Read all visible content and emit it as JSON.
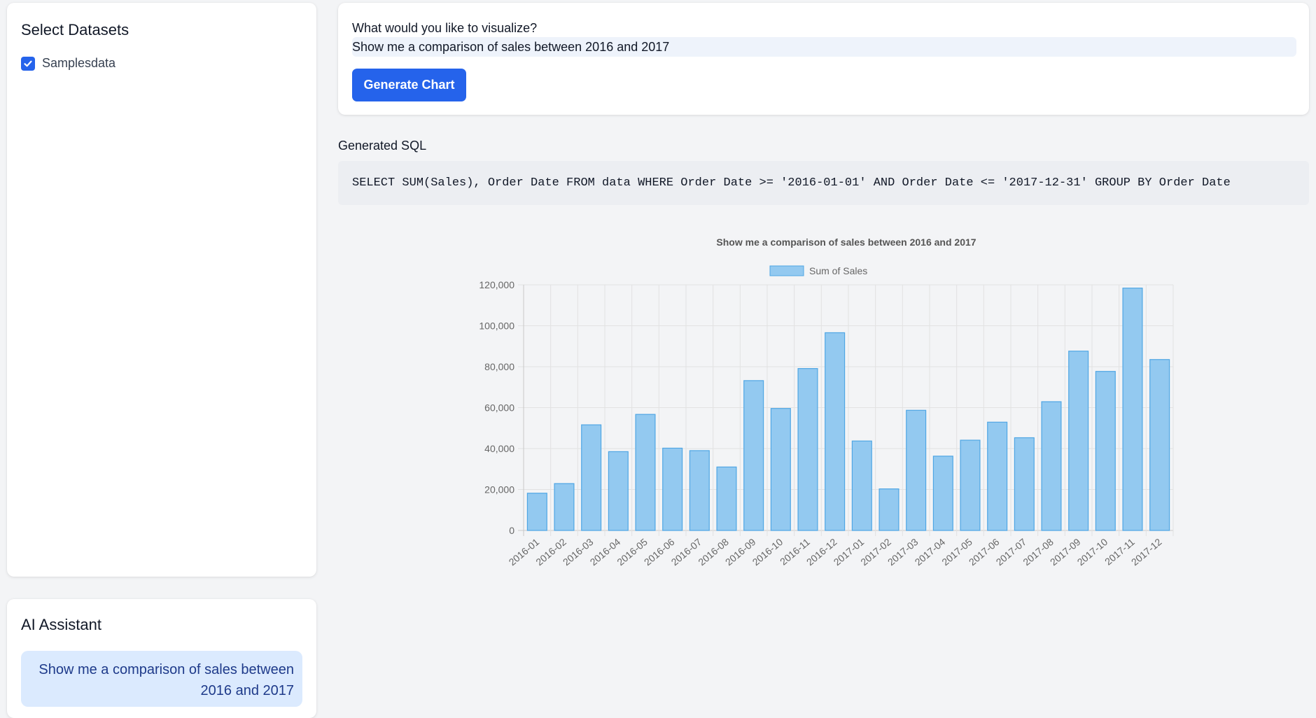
{
  "sidebar": {
    "datasets_title": "Select Datasets",
    "datasets": [
      {
        "label": "Samplesdata",
        "checked": true
      }
    ]
  },
  "assistant": {
    "title": "AI Assistant",
    "messages": [
      {
        "role": "user",
        "text": "Show me a comparison of sales between 2016 and 2017"
      }
    ]
  },
  "prompt": {
    "label": "What would you like to visualize?",
    "value": "Show me a comparison of sales between 2016 and 2017",
    "button_label": "Generate Chart"
  },
  "sql": {
    "title": "Generated SQL",
    "query": "SELECT SUM(Sales), Order Date FROM data WHERE Order Date >= '2016-01-01' AND Order Date <= '2017-12-31' GROUP BY Order Date"
  },
  "colors": {
    "accent": "#2563eb",
    "bar_fill": "#93c9f0",
    "bar_stroke": "#4fa6e4",
    "chat_bubble": "#dbeafe"
  },
  "chart_data": {
    "type": "bar",
    "title": "Show me a comparison of sales between 2016 and 2017",
    "legend": [
      "Sum of Sales"
    ],
    "legend_position": "top",
    "grid": true,
    "categories": [
      "2016-01",
      "2016-02",
      "2016-03",
      "2016-04",
      "2016-05",
      "2016-06",
      "2016-07",
      "2016-08",
      "2016-09",
      "2016-10",
      "2016-11",
      "2016-12",
      "2017-01",
      "2017-02",
      "2017-03",
      "2017-04",
      "2017-05",
      "2017-06",
      "2017-07",
      "2017-08",
      "2017-09",
      "2017-10",
      "2017-11",
      "2017-12"
    ],
    "series": [
      {
        "name": "Sum of Sales",
        "values": [
          18200,
          22900,
          51600,
          38500,
          56700,
          40200,
          39000,
          31000,
          73200,
          59600,
          79100,
          96600,
          43700,
          20300,
          58700,
          36300,
          44100,
          52900,
          45300,
          62900,
          87600,
          77700,
          118400,
          83500
        ]
      }
    ],
    "xlabel": "",
    "ylabel": "",
    "ylim": [
      0,
      120000
    ],
    "yticks": [
      0,
      20000,
      40000,
      60000,
      80000,
      100000,
      120000
    ]
  }
}
